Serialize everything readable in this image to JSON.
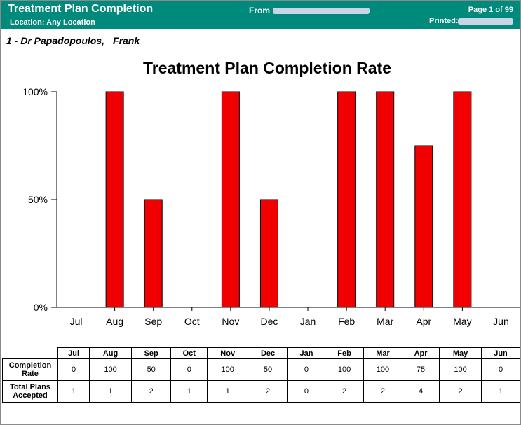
{
  "header": {
    "title": "Treatment Plan Completion",
    "location": "Location: Any Location",
    "from_label": "From",
    "page_label": "Page 1 of 99",
    "printed_label": "Printed:"
  },
  "provider": {
    "first": "1 - Dr Papadopoulos,",
    "second": "Frank"
  },
  "colors": {
    "header_bg": "#008a7c",
    "bar_fill": "#f00000"
  },
  "chart_data": {
    "type": "bar",
    "title": "Treatment Plan Completion Rate",
    "categories": [
      "Jul",
      "Aug",
      "Sep",
      "Oct",
      "Nov",
      "Dec",
      "Jan",
      "Feb",
      "Mar",
      "Apr",
      "May",
      "Jun"
    ],
    "values": [
      0,
      100,
      50,
      0,
      100,
      50,
      0,
      100,
      100,
      75,
      100,
      0
    ],
    "yticks": [
      "0%",
      "50%",
      "100%"
    ],
    "ylim": [
      0,
      100
    ],
    "grid": false
  },
  "table": {
    "headers": [
      "Jul",
      "Aug",
      "Sep",
      "Oct",
      "Nov",
      "Dec",
      "Jan",
      "Feb",
      "Mar",
      "Apr",
      "May",
      "Jun"
    ],
    "rows": [
      {
        "label": "Completion Rate",
        "cells": [
          "0",
          "100",
          "50",
          "0",
          "100",
          "50",
          "0",
          "100",
          "100",
          "75",
          "100",
          "0"
        ]
      },
      {
        "label": "Total Plans Accepted",
        "cells": [
          "1",
          "1",
          "2",
          "1",
          "1",
          "2",
          "0",
          "2",
          "2",
          "4",
          "2",
          "1"
        ]
      }
    ]
  }
}
